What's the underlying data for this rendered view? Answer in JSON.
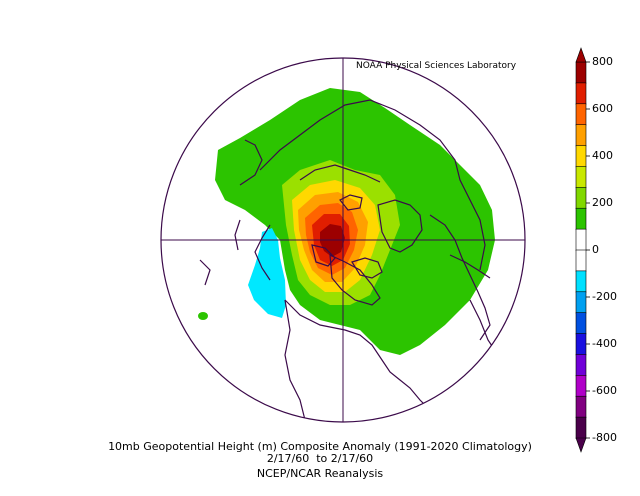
{
  "credit": "NOAA Physical Sciences Laboratory",
  "caption": {
    "line1": "10mb Geopotential Height (m) Composite Anomaly (1991-2020 Climatology)",
    "line2": "2/17/60  to 2/17/60",
    "line3": "NCEP/NCAR Reanalysis"
  },
  "colorbar": {
    "ticks": [
      "800",
      "600",
      "400",
      "200",
      "0",
      "-200",
      "-400",
      "-600",
      "-800"
    ],
    "colors": [
      "#9c0000",
      "#e01e00",
      "#ff6400",
      "#ffa000",
      "#ffd800",
      "#c8e800",
      "#80d800",
      "#2cc400",
      "#ffffff",
      "#ffffff",
      "#00e0ff",
      "#00a0f0",
      "#0050e0",
      "#1a10e0",
      "#7000d8",
      "#b000c8",
      "#800080",
      "#4a004a"
    ]
  },
  "map": {
    "projection": "north-polar-stereographic",
    "anomaly_regions": [
      {
        "name": "green-200",
        "color": "#2cc400"
      },
      {
        "name": "lightgreen-300",
        "color": "#9be000"
      },
      {
        "name": "yellow-400",
        "color": "#ffd800"
      },
      {
        "name": "orange-500",
        "color": "#ffa000"
      },
      {
        "name": "darkorange-600",
        "color": "#ff6400"
      },
      {
        "name": "red-700",
        "color": "#e01e00"
      },
      {
        "name": "darkred-800",
        "color": "#9c0000"
      },
      {
        "name": "cyan-minus200",
        "color": "#00e8ff"
      }
    ]
  }
}
